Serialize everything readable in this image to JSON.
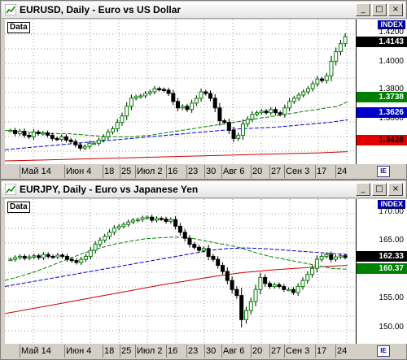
{
  "windows": [
    {
      "key": "eurusd",
      "title": "EURUSD, Daily - Euro vs US Dollar",
      "data_label": "Data",
      "index_label": "INDEX",
      "ie_label": "IE",
      "window_buttons": [
        "_",
        "□",
        "×"
      ],
      "y_ticks": [
        "1.4200",
        "1.4000",
        "1.3800",
        "1.3600"
      ],
      "price_boxes": [
        {
          "value": "1.4143",
          "bg": "#000000",
          "fg": "#ffffff"
        },
        {
          "value": "1.3738",
          "bg": "#008000",
          "fg": "#ffffff"
        },
        {
          "value": "1.3626",
          "bg": "#0000cc",
          "fg": "#ffffff"
        },
        {
          "value": "1.3428",
          "bg": "#e00000",
          "fg": "#000000"
        }
      ],
      "x_labels": [
        "Май 14",
        "Июн 4",
        "18",
        "25",
        "Июл 2",
        "16",
        "23",
        "30",
        "Авг 6",
        "20",
        "27",
        "Сен 3",
        "17",
        "24"
      ]
    },
    {
      "key": "eurjpy",
      "title": "EURJPY, Daily - Euro vs Japanese Yen",
      "data_label": "Data",
      "index_label": "INDEX",
      "ie_label": "IE",
      "window_buttons": [
        "_",
        "□",
        "×"
      ],
      "y_ticks": [
        "170.00",
        "165.00",
        "155.00",
        "150.00"
      ],
      "price_boxes": [
        {
          "value": "162.33",
          "bg": "#000000",
          "fg": "#ffffff"
        },
        {
          "value": "160.37",
          "bg": "#008000",
          "fg": "#ffffff"
        }
      ],
      "x_labels": [
        "Май 14",
        "Июн 4",
        "18",
        "25",
        "Июл 2",
        "16",
        "23",
        "30",
        "Авг 6",
        "20",
        "27",
        "Сен 3",
        "17",
        "24"
      ]
    }
  ],
  "colors": {
    "ma_fast": "#008000",
    "ma_mid": "#0000cc",
    "ma_slow": "#cc0000",
    "candle_up": "#008000",
    "candle_down": "#000000"
  },
  "chart_data": [
    {
      "type": "candlestick",
      "title": "EURUSD, Daily - Euro vs US Dollar",
      "ylim": [
        1.335,
        1.425
      ],
      "x_labels": [
        "Май 14",
        "Июн 4",
        "18",
        "25",
        "Июл 2",
        "16",
        "23",
        "30",
        "Авг 6",
        "20",
        "27",
        "Сен 3",
        "17",
        "24"
      ],
      "close": [
        1.356,
        1.354,
        1.3555,
        1.353,
        1.352,
        1.355,
        1.354,
        1.3545,
        1.353,
        1.351,
        1.3505,
        1.352,
        1.35,
        1.349,
        1.347,
        1.345,
        1.346,
        1.348,
        1.348,
        1.35,
        1.352,
        1.355,
        1.357,
        1.361,
        1.365,
        1.371,
        1.376,
        1.377,
        1.3775,
        1.379,
        1.38,
        1.382,
        1.3815,
        1.381,
        1.379,
        1.374,
        1.37,
        1.371,
        1.369,
        1.373,
        1.376,
        1.38,
        1.379,
        1.376,
        1.37,
        1.362,
        1.361,
        1.356,
        1.351,
        1.353,
        1.36,
        1.363,
        1.366,
        1.367,
        1.368,
        1.367,
        1.369,
        1.367,
        1.366,
        1.37,
        1.374,
        1.376,
        1.378,
        1.38,
        1.382,
        1.385,
        1.388,
        1.387,
        1.39,
        1.399,
        1.405,
        1.41,
        1.4143
      ],
      "ma_fast": [
        1.356,
        1.3555,
        1.355,
        1.3545,
        1.354,
        1.354,
        1.354,
        1.3535,
        1.353,
        1.3525,
        1.352,
        1.352,
        1.352,
        1.3525,
        1.353,
        1.354,
        1.355,
        1.356,
        1.357,
        1.358,
        1.359,
        1.36,
        1.361,
        1.362,
        1.363,
        1.364,
        1.365,
        1.366,
        1.367,
        1.368,
        1.369,
        1.37,
        1.371,
        1.3738
      ],
      "ma_mid": [
        1.344,
        1.345,
        1.346,
        1.347,
        1.348,
        1.349,
        1.35,
        1.351,
        1.352,
        1.353,
        1.354,
        1.355,
        1.356,
        1.357,
        1.3575,
        1.358,
        1.359,
        1.36,
        1.361,
        1.3626
      ],
      "ma_slow": [
        1.337,
        1.3375,
        1.338,
        1.3385,
        1.339,
        1.3395,
        1.34,
        1.3405,
        1.341,
        1.3415,
        1.342,
        1.3428
      ]
    },
    {
      "type": "candlestick",
      "title": "EURJPY, Daily - Euro vs Japanese Yen",
      "ylim": [
        148,
        172
      ],
      "x_labels": [
        "Май 14",
        "Июн 4",
        "18",
        "25",
        "Июл 2",
        "16",
        "23",
        "30",
        "Авг 6",
        "20",
        "27",
        "Сен 3",
        "17",
        "24"
      ],
      "close": [
        162.0,
        162.3,
        162.5,
        162.2,
        162.4,
        162.6,
        162.3,
        162.8,
        162.5,
        162.4,
        162.7,
        162.5,
        162.0,
        161.8,
        161.5,
        162.0,
        162.5,
        163.5,
        164.5,
        165.2,
        165.8,
        166.5,
        167.2,
        167.5,
        167.8,
        168.2,
        168.5,
        168.6,
        168.9,
        169.0,
        168.5,
        168.8,
        168.7,
        168.3,
        168.6,
        167.5,
        166.5,
        165.5,
        164.5,
        164.0,
        163.5,
        163.8,
        162.5,
        162.0,
        161.0,
        160.0,
        158.5,
        157.0,
        156.0,
        152.0,
        153.5,
        155.0,
        157.0,
        159.0,
        158.0,
        157.5,
        157.8,
        157.5,
        157.0,
        157.0,
        156.5,
        157.5,
        158.5,
        159.5,
        160.5,
        162.0,
        162.5,
        162.8,
        162.0,
        162.4,
        162.6,
        162.33
      ],
      "ma_fast": [
        158.5,
        159.2,
        160.0,
        161.0,
        162.0,
        163.0,
        163.8,
        164.5,
        165.0,
        165.4,
        165.6,
        165.7,
        165.5,
        165.0,
        164.5,
        164.0,
        163.2,
        162.5,
        162.0,
        161.5,
        161.0,
        160.5,
        160.37
      ],
      "ma_mid": [
        157.5,
        158.0,
        158.5,
        159.0,
        159.5,
        160.0,
        160.5,
        161.0,
        161.5,
        162.0,
        162.5,
        163.0,
        163.5,
        163.8,
        163.9,
        163.8,
        163.6,
        163.4,
        163.2,
        163.0,
        162.8
      ],
      "ma_slow": [
        153.0,
        153.8,
        154.6,
        155.4,
        156.2,
        157.0,
        157.8,
        158.5,
        159.2,
        159.8,
        160.2,
        160.5,
        160.8,
        161.0
      ]
    }
  ]
}
